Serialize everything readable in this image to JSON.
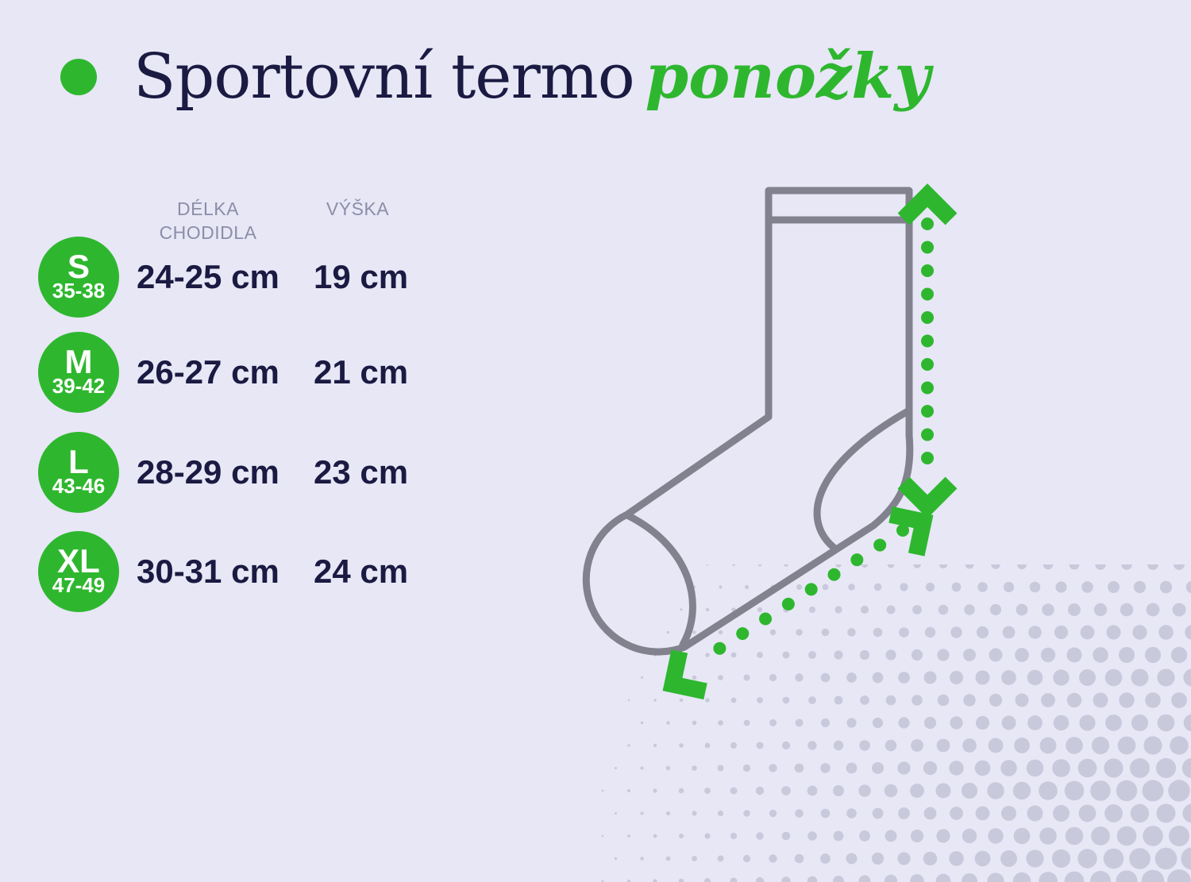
{
  "header": {
    "title_main": "Sportovní termo",
    "title_accent": "ponožky"
  },
  "size_table": {
    "headers": {
      "foot_line1": "DÉLKA",
      "foot_line2": "CHODIDLA",
      "height": "VÝŠKA"
    },
    "rows": [
      {
        "size": "S",
        "range": "35-38",
        "foot": "24-25 cm",
        "height": "19 cm"
      },
      {
        "size": "M",
        "range": "39-42",
        "foot": "26-27 cm",
        "height": "21 cm"
      },
      {
        "size": "L",
        "range": "43-46",
        "foot": "28-29 cm",
        "height": "23 cm"
      },
      {
        "size": "XL",
        "range": "47-49",
        "foot": "30-31 cm",
        "height": "24 cm"
      }
    ]
  },
  "illustration": {
    "name": "sock-outline-with-measurement-arrows"
  },
  "colors": {
    "accent_green": "#2eb72e",
    "text_navy": "#1a1a42",
    "header_gray": "#8d8da8",
    "background_lavender": "#e7e7f6",
    "sock_outline_gray": "#82828f",
    "halftone_dot": "#c9c9dc"
  },
  "chart_data": {
    "type": "table",
    "title": "Sportovní termo ponožky",
    "columns": [
      "DÉLKA CHODIDLA",
      "VÝŠKA"
    ],
    "rows": [
      {
        "size": "S",
        "eu_range": "35-38",
        "foot_length": "24-25 cm",
        "height": "19 cm"
      },
      {
        "size": "M",
        "eu_range": "39-42",
        "foot_length": "26-27 cm",
        "height": "21 cm"
      },
      {
        "size": "L",
        "eu_range": "43-46",
        "foot_length": "28-29 cm",
        "height": "23 cm"
      },
      {
        "size": "XL",
        "eu_range": "47-49",
        "foot_length": "30-31 cm",
        "height": "24 cm"
      }
    ]
  }
}
